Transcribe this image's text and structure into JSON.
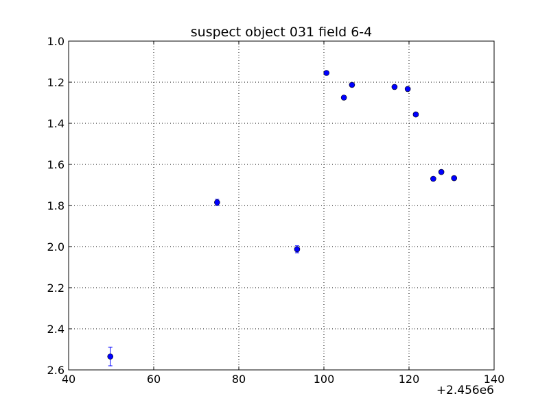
{
  "chart_data": {
    "type": "scatter",
    "title": "suspect object 031 field 6-4",
    "xlabel": "",
    "ylabel": "",
    "x_offset_label": "+2.456e6",
    "xlim": [
      40,
      140
    ],
    "ylim": [
      2.6,
      1.0
    ],
    "y_inverted": true,
    "grid": true,
    "x_ticks": [
      "40",
      "60",
      "80",
      "100",
      "120",
      "140"
    ],
    "y_ticks": [
      "1.0",
      "1.2",
      "1.4",
      "1.6",
      "1.8",
      "2.0",
      "2.2",
      "2.4",
      "2.6"
    ],
    "series": [
      {
        "color": "#0000ff",
        "marker": "circle",
        "points": [
          {
            "x": 49.8,
            "y": 2.535,
            "err": 0.045
          },
          {
            "x": 74.9,
            "y": 1.785,
            "err": 0.015
          },
          {
            "x": 93.7,
            "y": 2.013,
            "err": 0.017
          },
          {
            "x": 100.6,
            "y": 1.155,
            "err": 0.008
          },
          {
            "x": 104.7,
            "y": 1.275,
            "err": 0.008
          },
          {
            "x": 106.6,
            "y": 1.213,
            "err": 0.008
          },
          {
            "x": 116.6,
            "y": 1.223,
            "err": 0.008
          },
          {
            "x": 119.7,
            "y": 1.233,
            "err": 0.008
          },
          {
            "x": 121.6,
            "y": 1.357,
            "err": 0.008
          },
          {
            "x": 125.7,
            "y": 1.67,
            "err": 0.008
          },
          {
            "x": 127.6,
            "y": 1.637,
            "err": 0.008
          },
          {
            "x": 130.6,
            "y": 1.667,
            "err": 0.008
          }
        ]
      }
    ]
  }
}
